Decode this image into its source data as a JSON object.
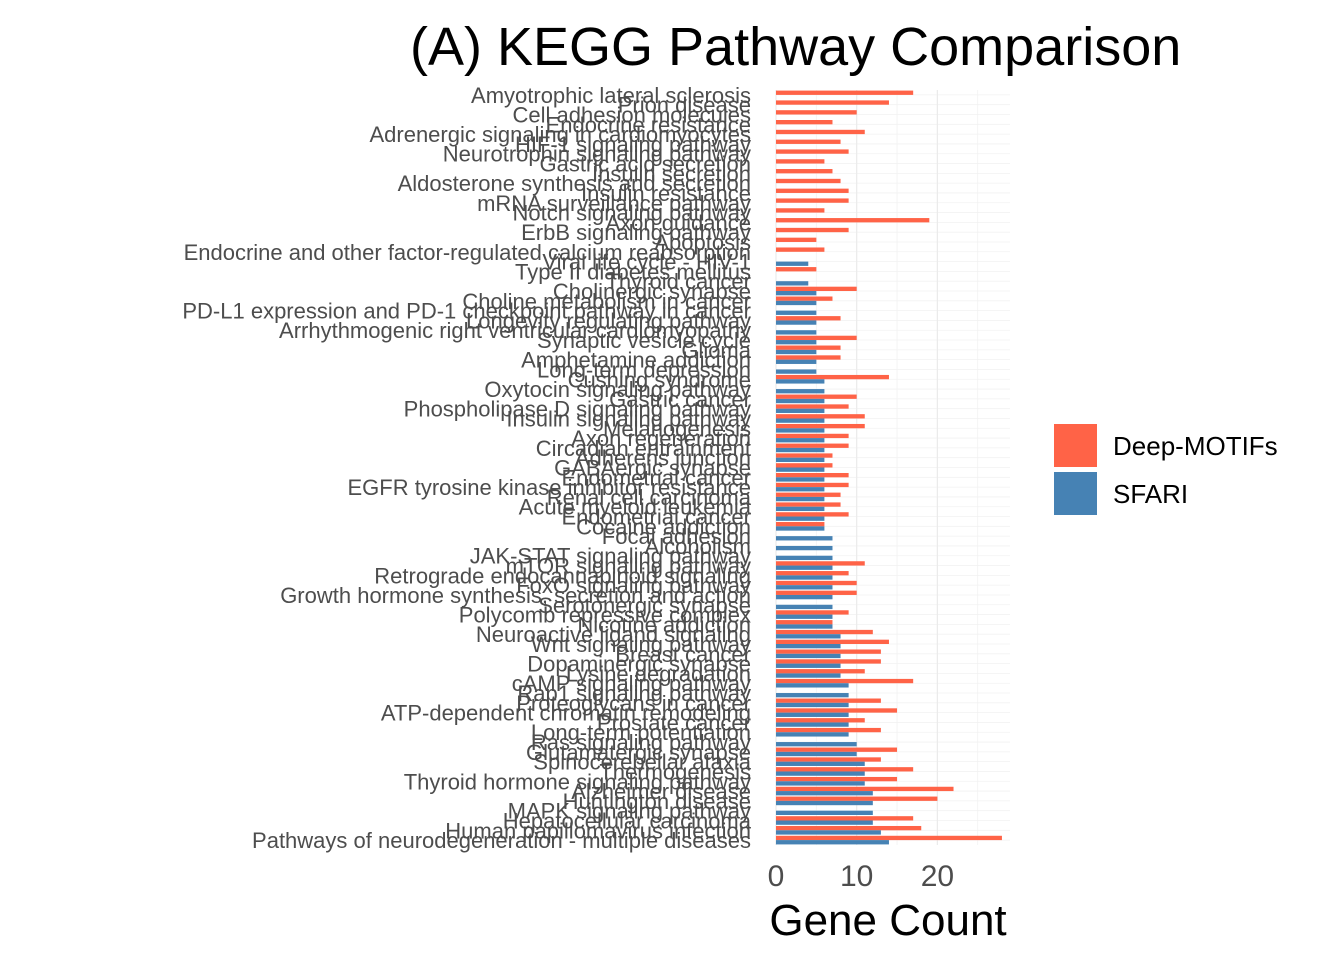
{
  "chart_data": {
    "type": "bar",
    "orientation": "horizontal",
    "title": "(A) KEGG Pathway Comparison",
    "xlabel": "Gene Count",
    "ylabel": "",
    "xlim": [
      0,
      29
    ],
    "xticks": [
      0,
      10,
      20
    ],
    "grid": true,
    "legend_position": "right",
    "categories": [
      "Amyotrophic lateral sclerosis",
      "Prion disease",
      "Cell adhesion molecules",
      "Endocrine resistance",
      "Adrenergic signaling in cardiomyocytes",
      "HIF-1 signaling pathway",
      "Neurotrophin signaling pathway",
      "Gastric acid secretion",
      "Insulin secretion",
      "Aldosterone synthesis and secretion",
      "Insulin resistance",
      "mRNA surveillance pathway",
      "Notch signaling pathway",
      "Axon guidance",
      "ErbB signaling pathway",
      "Apoptosis",
      "Endocrine and other factor-regulated calcium reabsorption",
      "Viral life cycle - HIV-1",
      "Type II diabetes mellitus",
      "Thyroid cancer",
      "Cholinergic synapse",
      "Choline metabolism in cancer",
      "PD-L1 expression and PD-1 checkpoint pathway in cancer",
      "Longevity regulating pathway",
      "Arrhythmogenic right ventricular cardiomyopathy",
      "Synaptic vesicle cycle",
      "Glioma",
      "Amphetamine addiction",
      "Long-term depression",
      "Cushing syndrome",
      "Oxytocin signaling pathway",
      "Gastric cancer",
      "Phospholipase D signaling pathway",
      "Insulin signaling pathway",
      "Melanogenesis",
      "Axon regeneration",
      "Circadian entrainment",
      "Adherens junction",
      "GABAergic synapse",
      "Endometrial cancer",
      "EGFR tyrosine kinase inhibitor resistance",
      "Renal cell carcinoma",
      "Acute myeloid leukemia",
      "Endometrial cancer",
      "Cocaine addiction",
      "Focal adhesion",
      "Alcoholism",
      "JAK-STAT signaling pathway",
      "mTOR signaling pathway",
      "Retrograde endocannabinoid signaling",
      "FoxO signaling pathway",
      "Growth hormone synthesis, secretion and action",
      "Serotonergic synapse",
      "Polycomb repressive complex",
      "Nicotine addiction",
      "Neuroactive ligand signaling",
      "Wnt signaling pathway",
      "Breast cancer",
      "Dopaminergic synapse",
      "Lysine degradation",
      "cAMP signaling pathway",
      "Rap1 signaling pathway",
      "Proteoglycans in cancer",
      "ATP-dependent chromatin remodeling",
      "Prostate cancer",
      "Long-term potentiation",
      "Ras signaling pathway",
      "Glutamatergic synapse",
      "Spinocerebellar ataxia",
      "Thermogenesis",
      "Thyroid hormone signaling pathway",
      "Alzheimer disease",
      "Huntington disease",
      "MAPK signaling pathway",
      "Hepatocellular carcinoma",
      "Human papillomavirus infection",
      "Pathways of neurodegeneration - multiple diseases"
    ],
    "series": [
      {
        "name": "Deep-MOTIFs",
        "color": "#FF6347",
        "values": [
          17,
          14,
          10,
          7,
          11,
          8,
          9,
          6,
          7,
          8,
          9,
          9,
          6,
          19,
          9,
          5,
          6,
          0,
          5,
          0,
          10,
          7,
          0,
          8,
          0,
          10,
          8,
          8,
          0,
          14,
          0,
          10,
          9,
          11,
          11,
          9,
          9,
          7,
          7,
          9,
          9,
          8,
          8,
          9,
          6,
          0,
          0,
          0,
          11,
          9,
          10,
          10,
          0,
          9,
          7,
          12,
          14,
          13,
          13,
          11,
          17,
          0,
          13,
          15,
          11,
          13,
          0,
          15,
          13,
          17,
          15,
          22,
          20,
          0,
          17,
          18,
          28
        ]
      },
      {
        "name": "SFARI",
        "color": "#4682B4",
        "values": [
          0,
          0,
          0,
          0,
          0,
          0,
          0,
          0,
          0,
          0,
          0,
          0,
          0,
          0,
          0,
          0,
          0,
          4,
          0,
          4,
          5,
          5,
          5,
          5,
          5,
          5,
          5,
          5,
          5,
          6,
          6,
          6,
          6,
          6,
          6,
          6,
          6,
          6,
          6,
          6,
          6,
          6,
          6,
          6,
          6,
          7,
          7,
          7,
          7,
          7,
          7,
          7,
          7,
          7,
          7,
          8,
          8,
          8,
          8,
          8,
          9,
          9,
          9,
          9,
          9,
          9,
          10,
          10,
          11,
          11,
          11,
          12,
          12,
          12,
          12,
          13,
          14
        ]
      }
    ]
  }
}
